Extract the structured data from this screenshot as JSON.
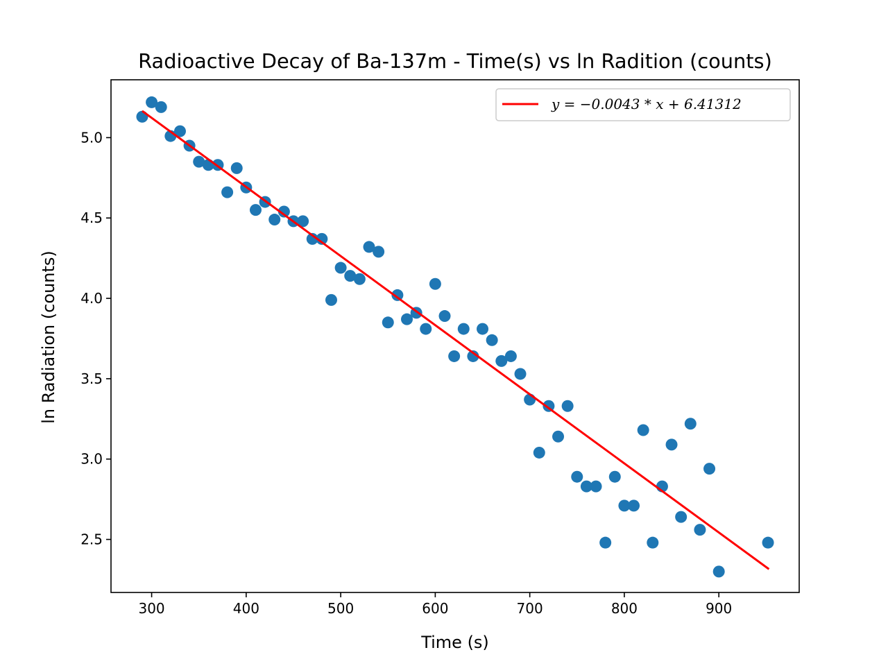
{
  "chart_data": {
    "type": "scatter",
    "title": "Radioactive Decay of Ba-137m - Time(s) vs ln Radition (counts)",
    "xlabel": "Time (s)",
    "ylabel": "ln Radiation (counts)",
    "xlim": [
      257,
      985
    ],
    "ylim": [
      2.17,
      5.36
    ],
    "x_ticks": [
      300,
      400,
      500,
      600,
      700,
      800,
      900
    ],
    "y_ticks": [
      2.5,
      3.0,
      3.5,
      4.0,
      4.5,
      5.0
    ],
    "x_tick_labels": [
      "300",
      "400",
      "500",
      "600",
      "700",
      "800",
      "900"
    ],
    "y_tick_labels": [
      "2.5",
      "3.0",
      "3.5",
      "4.0",
      "4.5",
      "5.0"
    ],
    "grid": false,
    "legend_position": "top-right",
    "series": [
      {
        "kind": "scatter",
        "color": "#1f77b4",
        "x": [
          290,
          300,
          310,
          320,
          330,
          340,
          350,
          360,
          370,
          380,
          390,
          400,
          410,
          420,
          430,
          440,
          450,
          460,
          470,
          480,
          490,
          500,
          510,
          520,
          530,
          540,
          550,
          560,
          570,
          580,
          590,
          600,
          610,
          620,
          630,
          640,
          650,
          660,
          670,
          680,
          690,
          700,
          710,
          720,
          730,
          740,
          750,
          760,
          770,
          780,
          790,
          800,
          810,
          820,
          830,
          840,
          850,
          860,
          870,
          880,
          890,
          900,
          952
        ],
        "y": [
          5.13,
          5.22,
          5.19,
          5.01,
          5.04,
          4.95,
          4.85,
          4.83,
          4.83,
          4.66,
          4.81,
          4.69,
          4.55,
          4.6,
          4.49,
          4.54,
          4.48,
          4.48,
          4.37,
          4.37,
          3.99,
          4.19,
          4.14,
          4.12,
          4.32,
          4.29,
          3.85,
          4.02,
          3.87,
          3.91,
          3.81,
          4.09,
          3.89,
          3.64,
          3.81,
          3.64,
          3.81,
          3.74,
          3.61,
          3.64,
          3.53,
          3.37,
          3.04,
          3.33,
          3.14,
          3.33,
          2.89,
          2.83,
          2.83,
          2.48,
          2.89,
          2.71,
          2.71,
          3.18,
          2.48,
          2.83,
          3.09,
          2.64,
          3.22,
          2.56,
          2.94,
          2.3,
          2.48
        ]
      },
      {
        "kind": "line",
        "name": "$y = -0.0043 * x + 6.41312$",
        "color": "#ff0000",
        "slope": -0.0043,
        "intercept": 6.41312,
        "x": [
          290,
          953
        ]
      }
    ],
    "legend_label": "y = −0.0043 * x + 6.41312"
  }
}
